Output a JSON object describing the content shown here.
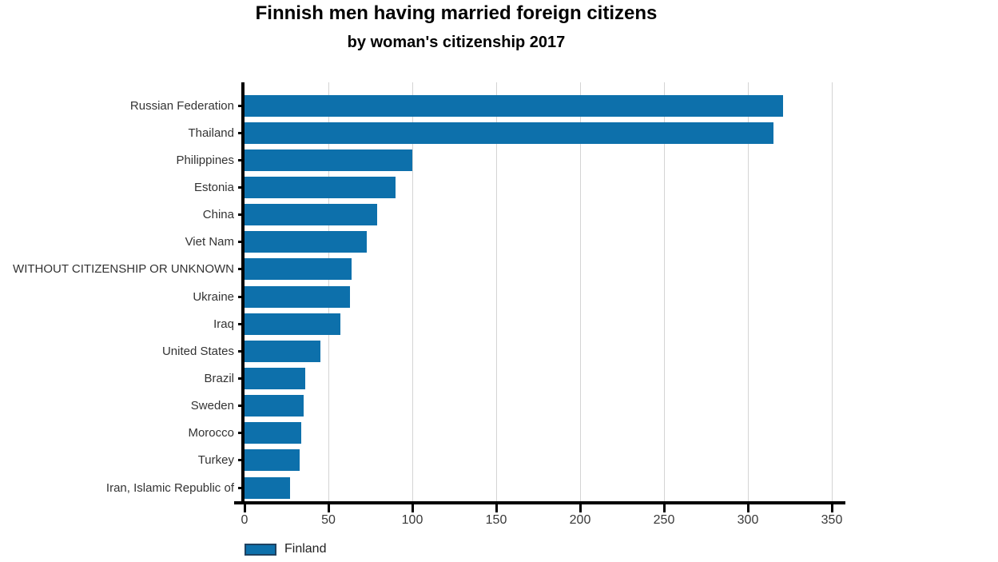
{
  "chart_data": {
    "type": "bar",
    "orientation": "horizontal",
    "title": "Finnish men having married foreign citizens",
    "subtitle": "by woman's citizenship 2017",
    "categories": [
      "Russian Federation",
      "Thailand",
      "Philippines",
      "Estonia",
      "China",
      "Viet Nam",
      "WITHOUT CITIZENSHIP OR UNKNOWN",
      "Ukraine",
      "Iraq",
      "United States",
      "Brazil",
      "Sweden",
      "Morocco",
      "Turkey",
      "Iran, Islamic Republic of"
    ],
    "series": [
      {
        "name": "Finland",
        "color": "#0d70ab",
        "values": [
          321,
          315,
          100,
          90,
          79,
          73,
          64,
          63,
          57,
          45,
          36,
          35,
          34,
          33,
          27
        ]
      }
    ],
    "xlabel": "",
    "ylabel": "",
    "xlim": [
      0,
      358
    ],
    "x_ticks": [
      0,
      50,
      100,
      150,
      200,
      250,
      300,
      350
    ],
    "grid": "vertical-light-gray",
    "legend": {
      "position": "bottom-left",
      "entries": [
        {
          "label": "Finland",
          "color": "#0d70ab"
        }
      ]
    }
  },
  "colors": {
    "bar": "#0d70ab",
    "legend_border": "#1f4260",
    "gridline": "#d4d4d4",
    "axis": "#000000",
    "label_text": "#333333"
  }
}
